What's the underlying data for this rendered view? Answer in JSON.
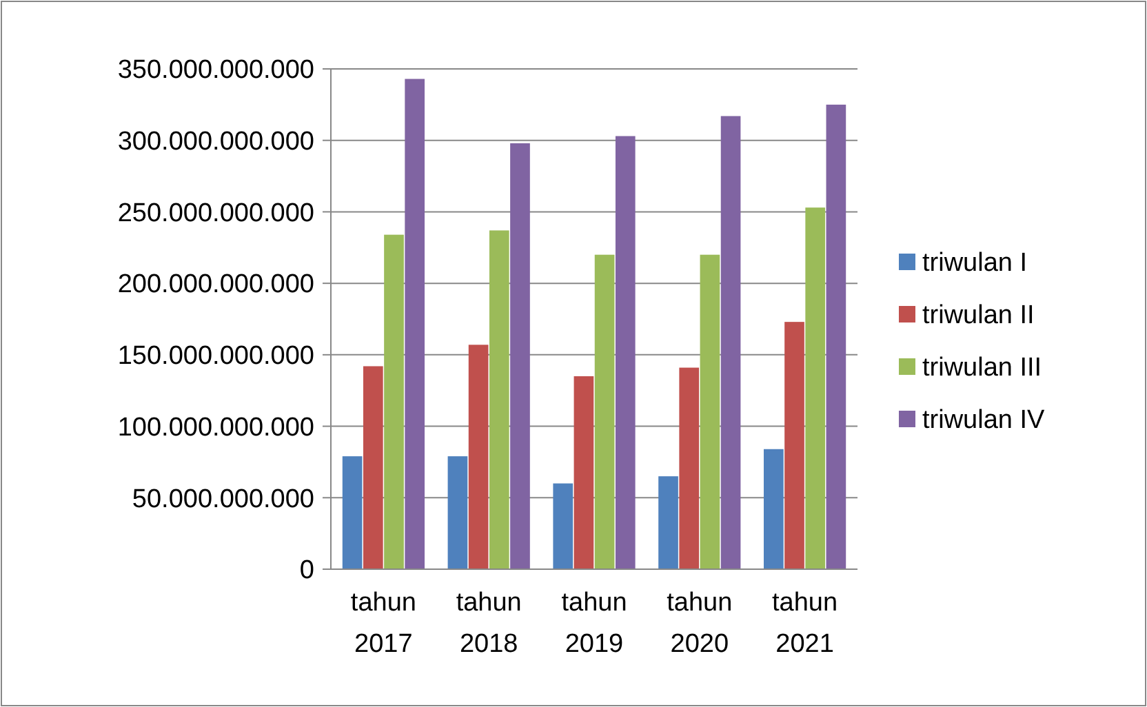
{
  "chart_data": {
    "type": "bar",
    "categories": [
      "tahun 2017",
      "tahun 2018",
      "tahun 2019",
      "tahun 2020",
      "tahun 2021"
    ],
    "series": [
      {
        "name": "triwulan I",
        "color": "#4f81bd",
        "values": [
          79000000000,
          79000000000,
          60000000000,
          65000000000,
          84000000000
        ]
      },
      {
        "name": "triwulan II",
        "color": "#c0504d",
        "values": [
          142000000000,
          157000000000,
          135000000000,
          141000000000,
          173000000000
        ]
      },
      {
        "name": "triwulan III",
        "color": "#9bbb59",
        "values": [
          234000000000,
          237000000000,
          220000000000,
          220000000000,
          253000000000
        ]
      },
      {
        "name": "triwulan IV",
        "color": "#8064a2",
        "values": [
          343000000000,
          298000000000,
          303000000000,
          317000000000,
          325000000000
        ]
      }
    ],
    "ylim": [
      0,
      350000000000
    ],
    "yticks": [
      {
        "value": 0,
        "label": "0"
      },
      {
        "value": 50000000000,
        "label": "50.000.000.000"
      },
      {
        "value": 100000000000,
        "label": "100.000.000.000"
      },
      {
        "value": 150000000000,
        "label": "150.000.000.000"
      },
      {
        "value": 200000000000,
        "label": "200.000.000.000"
      },
      {
        "value": 250000000000,
        "label": "250.000.000.000"
      },
      {
        "value": 300000000000,
        "label": "300.000.000.000"
      },
      {
        "value": 350000000000,
        "label": "350.000.000.000"
      }
    ],
    "grid": true,
    "legend": "right"
  }
}
